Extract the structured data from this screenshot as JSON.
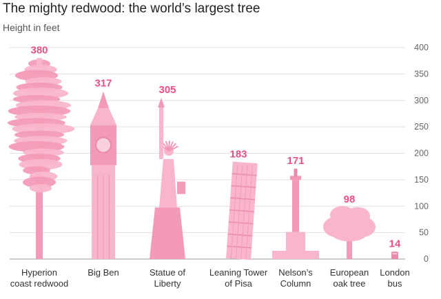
{
  "chart_data": {
    "type": "bar",
    "title": "The mighty redwood: the world’s largest tree",
    "subtitle": "Height in feet",
    "categories": [
      [
        "Hyperion",
        "coast redwood"
      ],
      [
        "Big Ben"
      ],
      [
        "Statue of",
        "Liberty"
      ],
      [
        "Leaning Tower",
        "of Pisa"
      ],
      [
        "Nelson’s",
        "Column"
      ],
      [
        "European",
        "oak tree"
      ],
      [
        "London",
        "bus"
      ]
    ],
    "values": [
      380,
      317,
      305,
      183,
      171,
      98,
      14
    ],
    "value_labels": [
      "380",
      "317",
      "305",
      "183",
      "171",
      "98",
      "14"
    ],
    "icons": [
      "redwood-tree-icon",
      "big-ben-icon",
      "statue-of-liberty-icon",
      "leaning-tower-icon",
      "nelsons-column-icon",
      "oak-tree-icon",
      "london-bus-icon"
    ],
    "ylim": [
      0,
      400
    ],
    "yticks": [
      0,
      50,
      100,
      150,
      200,
      250,
      300,
      350,
      400
    ],
    "y_axis_side": "right",
    "grid": true,
    "colors": {
      "mark_light": "#f9b6cb",
      "mark_mid": "#f39bb6",
      "mark_dark": "#e98aa8",
      "value_label": "#ea4f86",
      "grid": "#e9ded7"
    }
  }
}
